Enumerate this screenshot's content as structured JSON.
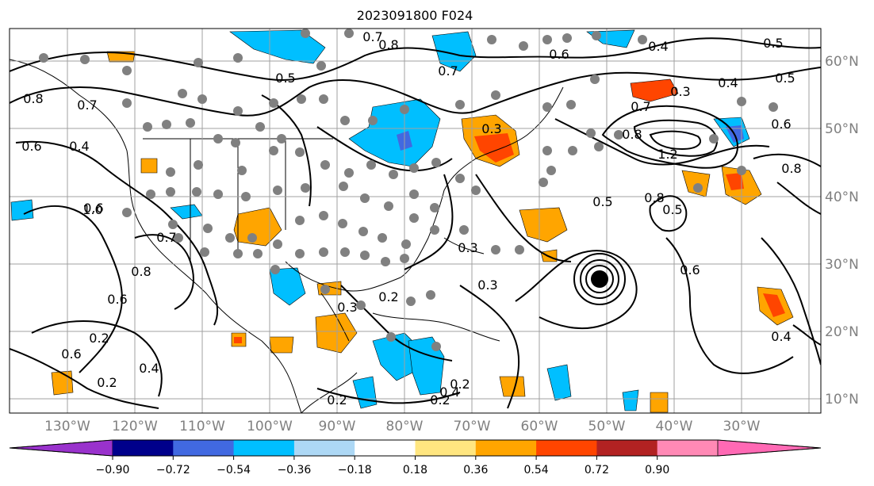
{
  "title": "2023091800 F024",
  "map": {
    "lon_labels": [
      "130°W",
      "120°W",
      "110°W",
      "100°W",
      "90°W",
      "80°W",
      "70°W",
      "60°W",
      "50°W",
      "40°W",
      "30°W"
    ],
    "lat_labels": [
      "60°N",
      "50°N",
      "40°N",
      "30°N",
      "20°N",
      "10°N"
    ],
    "contour_labels": [
      "0.5",
      "0.7",
      "0.8",
      "0.7",
      "0.6",
      "0.4",
      "0.5",
      "0.6",
      "0.8",
      "0.7",
      "0.4",
      "0.6",
      "0.7",
      "0.6",
      "0.8",
      "0.2",
      "0.6",
      "0.2",
      "0.4",
      "0.3",
      "0.2",
      "0.3",
      "0.3",
      "0.3",
      "0.3",
      "0.4",
      "0.5",
      "0.6",
      "0.7",
      "0.8",
      "1.2",
      "1.0",
      "0.8",
      "0.5",
      "0.6",
      "0.8",
      "0.2",
      "0.4",
      "0.2",
      "0.2",
      "0.5",
      "0.4"
    ],
    "colors": {
      "neg_light": "#add8f5",
      "neg_mid": "#00bfff",
      "pos_mid": "#ffa500",
      "pos_strong": "#ff4500",
      "marker": "#808080",
      "cyclone": "#000000"
    }
  },
  "colorbar": {
    "tick_labels": [
      "−0.90",
      "−0.72",
      "−0.54",
      "−0.36",
      "−0.18",
      "0.18",
      "0.36",
      "0.54",
      "0.72",
      "0.90"
    ],
    "colors": [
      "#9932cc",
      "#00008b",
      "#4169e1",
      "#00bfff",
      "#add8f5",
      "#ffffff",
      "#ffe680",
      "#ffa500",
      "#ff4500",
      "#b22222",
      "#ff89b5",
      "#ff69b4"
    ]
  }
}
